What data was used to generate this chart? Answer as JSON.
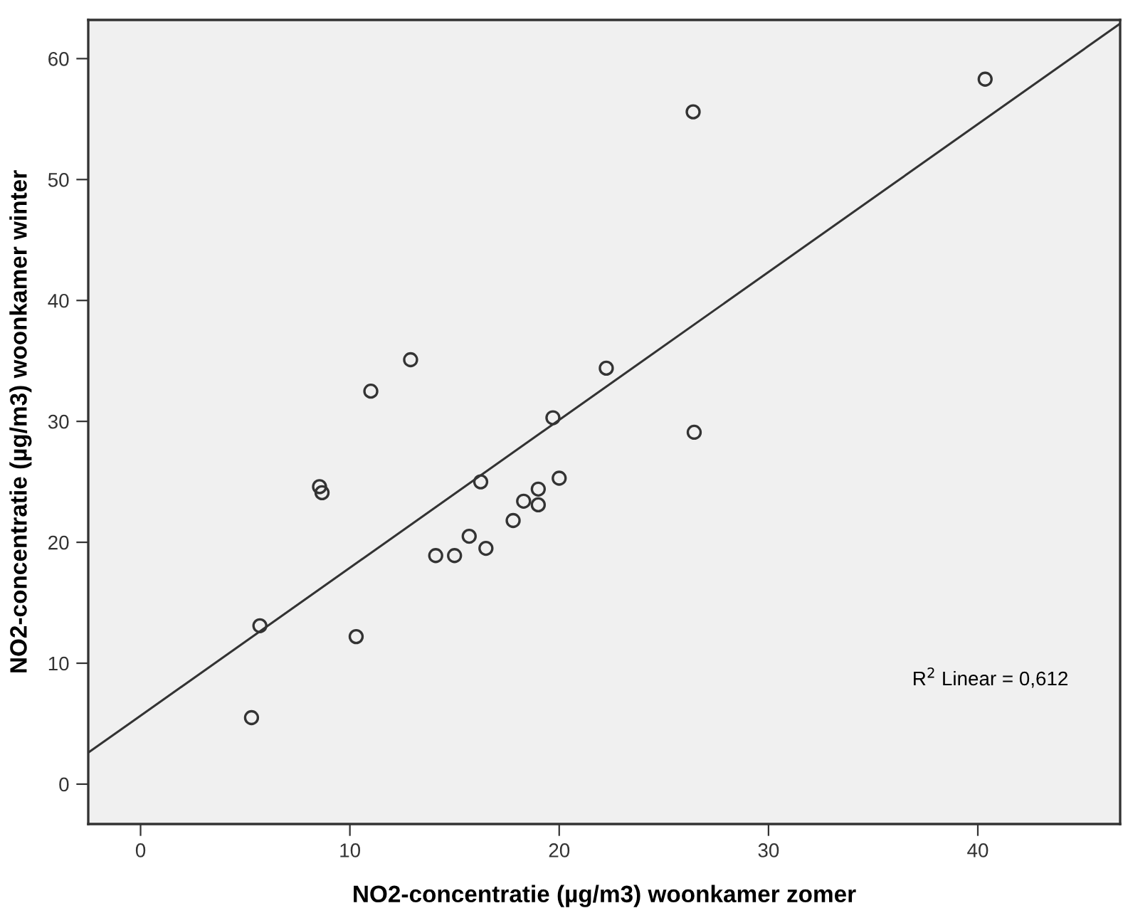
{
  "chart_data": {
    "type": "scatter",
    "xlabel": "NO2-concentratie (µg/m3) woonkamer zomer",
    "ylabel": "NO2-concentratie (µg/m3) woonkamer winter",
    "xlim": [
      -2.5,
      46.8
    ],
    "ylim": [
      -3.3,
      63.2
    ],
    "xticks": [
      0,
      10,
      20,
      30,
      40
    ],
    "yticks": [
      0,
      10,
      20,
      30,
      40,
      50,
      60
    ],
    "series": [
      {
        "color": "#333333",
        "marker": "circle",
        "x": [
          11.0,
          12.9,
          8.55,
          8.67,
          5.7,
          5.3,
          10.3,
          14.1,
          15.0,
          15.7,
          16.5,
          16.25,
          17.8,
          18.3,
          19.0,
          19.0,
          20.0,
          19.7,
          22.25,
          26.45,
          26.4,
          40.35
        ],
        "values": [
          32.5,
          35.1,
          24.6,
          24.1,
          13.1,
          5.5,
          12.2,
          18.9,
          18.9,
          20.5,
          19.5,
          25.0,
          21.8,
          23.4,
          24.4,
          23.1,
          25.3,
          30.3,
          34.4,
          29.1,
          55.6,
          58.3
        ]
      },
      {
        "type": "line",
        "color": "#333333",
        "marker": "none",
        "x": [
          -2.5,
          46.8
        ],
        "values": [
          2.6,
          62.9
        ]
      }
    ],
    "annotations": [
      "R$^{2}$ Linear = 0,612"
    ]
  }
}
